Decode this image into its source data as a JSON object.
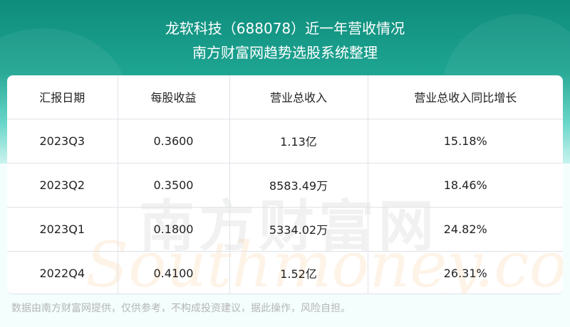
{
  "header": {
    "title": "龙软科技（688078）近一年营收情况",
    "subtitle": "南方财富网趋势选股系统整理"
  },
  "table": {
    "columns": [
      "汇报日期",
      "每股收益",
      "营业总收入",
      "营业总收入同比增长"
    ],
    "rows": [
      [
        "2023Q3",
        "0.3600",
        "1.13亿",
        "15.18%"
      ],
      [
        "2023Q2",
        "0.3500",
        "8583.49万",
        "18.46%"
      ],
      [
        "2023Q1",
        "0.1800",
        "5334.02万",
        "24.82%"
      ],
      [
        "2022Q4",
        "0.4100",
        "1.52亿",
        "26.31%"
      ]
    ]
  },
  "watermark": {
    "cn": "南方财富网",
    "en": "Southmoney.com"
  },
  "footer": {
    "disclaimer": "数据由南方财富网提供，仅供参考，不构成投资建议，据此操作，风险自担。"
  },
  "colors": {
    "header_bg": "#1ea592",
    "watermark": "#fabe78"
  }
}
